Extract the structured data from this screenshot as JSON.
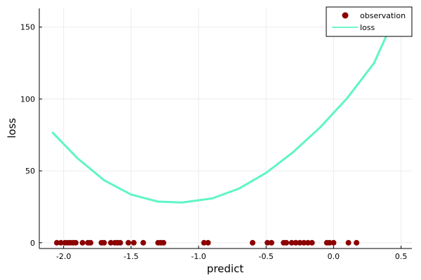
{
  "chart_data": {
    "type": "scatter",
    "xlabel": "predict",
    "ylabel": "loss",
    "xlim": [
      -2.18,
      0.58
    ],
    "ylim": [
      -4,
      163
    ],
    "xticks": [
      {
        "value": -2.0,
        "label": "-2.0"
      },
      {
        "value": -1.5,
        "label": "-1.5"
      },
      {
        "value": -1.0,
        "label": "-1.0"
      },
      {
        "value": -0.5,
        "label": "-0.5"
      },
      {
        "value": 0.0,
        "label": "0.0"
      },
      {
        "value": 0.5,
        "label": "0.5"
      }
    ],
    "yticks": [
      {
        "value": 0,
        "label": "0"
      },
      {
        "value": 50,
        "label": "50"
      },
      {
        "value": 100,
        "label": "100"
      },
      {
        "value": 150,
        "label": "150"
      }
    ],
    "grid": true,
    "legend_position": "top-right",
    "series": [
      {
        "name": "observation",
        "kind": "scatter",
        "color": "#8b0000",
        "points": [
          [
            -2.05,
            0
          ],
          [
            -2.02,
            0
          ],
          [
            -1.99,
            0
          ],
          [
            -1.97,
            0
          ],
          [
            -1.95,
            0
          ],
          [
            -1.93,
            0
          ],
          [
            -1.91,
            0
          ],
          [
            -1.86,
            0
          ],
          [
            -1.82,
            0
          ],
          [
            -1.8,
            0
          ],
          [
            -1.72,
            0
          ],
          [
            -1.7,
            0
          ],
          [
            -1.65,
            0
          ],
          [
            -1.62,
            0
          ],
          [
            -1.6,
            0
          ],
          [
            -1.58,
            0
          ],
          [
            -1.52,
            0
          ],
          [
            -1.48,
            0
          ],
          [
            -1.41,
            0
          ],
          [
            -1.3,
            0
          ],
          [
            -1.28,
            0
          ],
          [
            -1.26,
            0
          ],
          [
            -0.96,
            0
          ],
          [
            -0.93,
            0
          ],
          [
            -0.6,
            0
          ],
          [
            -0.49,
            0
          ],
          [
            -0.46,
            0
          ],
          [
            -0.37,
            0
          ],
          [
            -0.35,
            0
          ],
          [
            -0.31,
            0
          ],
          [
            -0.28,
            0
          ],
          [
            -0.25,
            0
          ],
          [
            -0.22,
            0
          ],
          [
            -0.19,
            0
          ],
          [
            -0.16,
            0
          ],
          [
            -0.05,
            0
          ],
          [
            -0.03,
            0
          ],
          [
            0.0,
            0
          ],
          [
            0.11,
            0
          ],
          [
            0.17,
            0
          ]
        ]
      },
      {
        "name": "loss",
        "kind": "line",
        "color": "#5ff5c7",
        "points": [
          [
            -2.08,
            76.5
          ],
          [
            -1.9,
            59.0
          ],
          [
            -1.7,
            43.5
          ],
          [
            -1.5,
            33.5
          ],
          [
            -1.3,
            28.6
          ],
          [
            -1.12,
            28.0
          ],
          [
            -0.9,
            30.8
          ],
          [
            -0.7,
            37.7
          ],
          [
            -0.5,
            48.6
          ],
          [
            -0.3,
            63.0
          ],
          [
            -0.1,
            80.2
          ],
          [
            0.1,
            100.5
          ],
          [
            0.3,
            125.0
          ],
          [
            0.42,
            150.0
          ],
          [
            0.46,
            158.0
          ]
        ]
      }
    ]
  }
}
